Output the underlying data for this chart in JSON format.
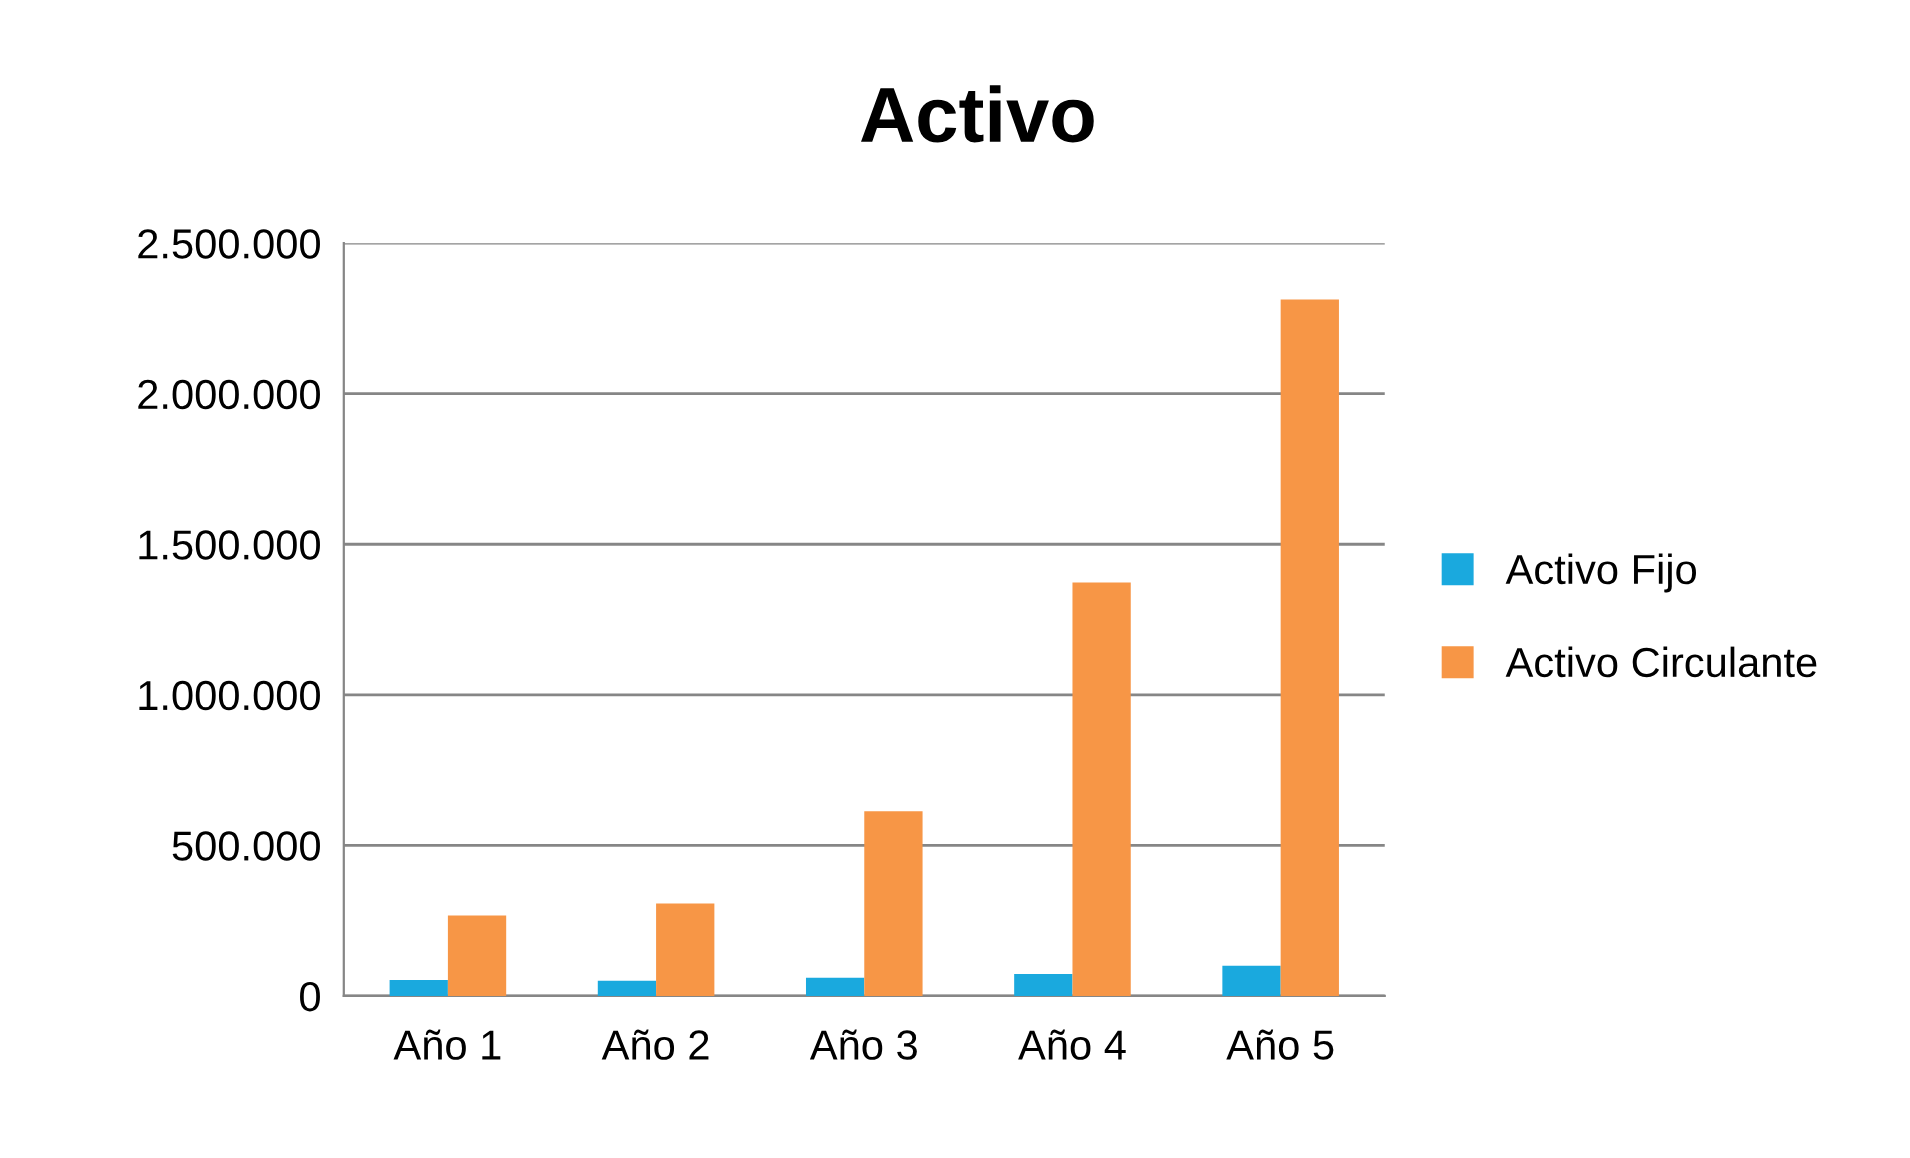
{
  "chart_data": {
    "type": "bar",
    "title": "Activo",
    "categories": [
      "Año 1",
      "Año 2",
      "Año 3",
      "Año 4",
      "Año 5"
    ],
    "series": [
      {
        "name": "Activo Fijo",
        "color": "#1aa9de",
        "values": [
          53000,
          50000,
          60000,
          73000,
          100000
        ]
      },
      {
        "name": "Activo Circulante",
        "color": "#f79646",
        "values": [
          267000,
          307000,
          613000,
          1373000,
          2313000
        ]
      }
    ],
    "ylim": [
      0,
      2500000
    ],
    "yticks": [
      {
        "value": 0,
        "label": "0"
      },
      {
        "value": 500000,
        "label": "500.000"
      },
      {
        "value": 1000000,
        "label": "1.000.000"
      },
      {
        "value": 1500000,
        "label": "1.500.000"
      },
      {
        "value": 2000000,
        "label": "2.000.000"
      },
      {
        "value": 2500000,
        "label": "2.500.000"
      }
    ],
    "grid": "y",
    "legend": "right"
  }
}
